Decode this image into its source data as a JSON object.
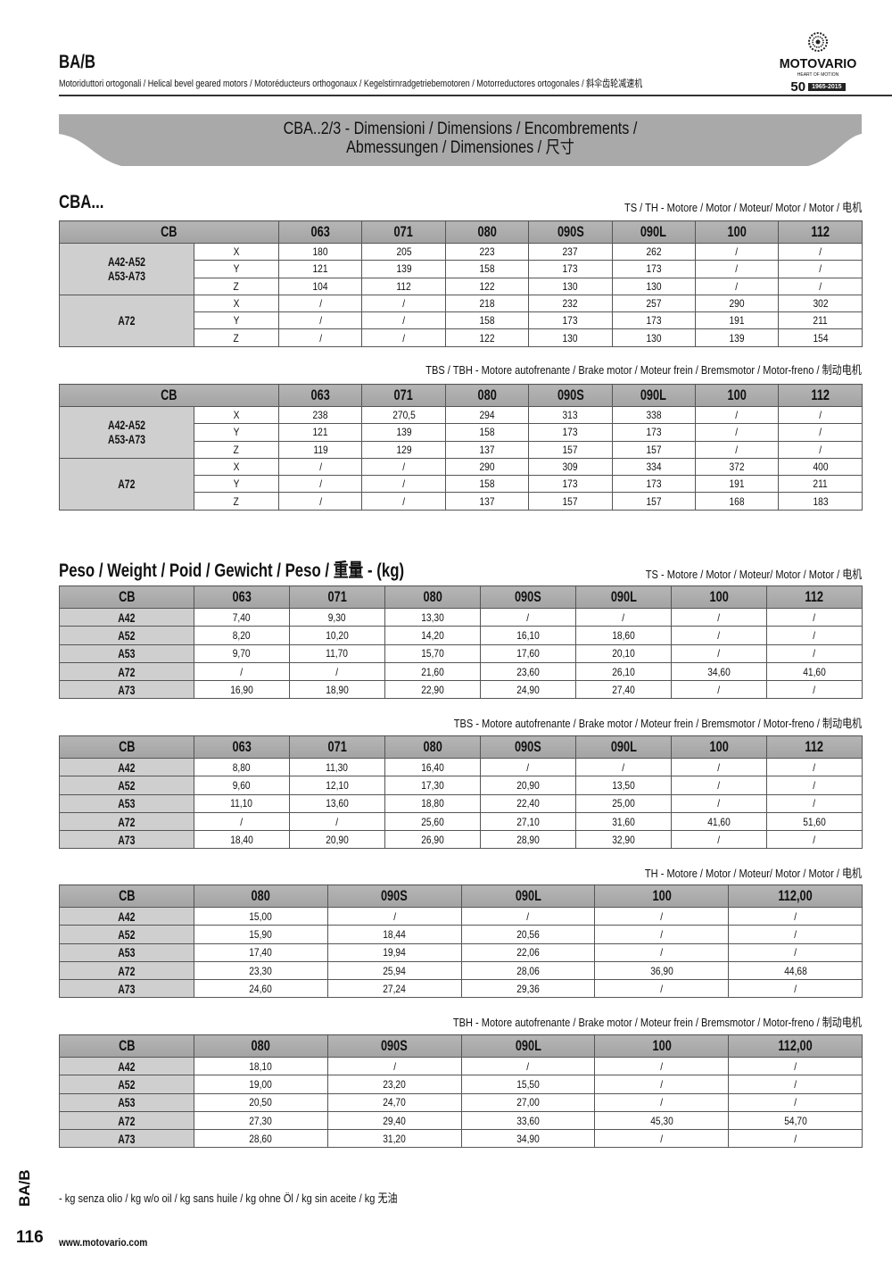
{
  "header": {
    "code": "BA/B",
    "subtitle": "Motoriduttori ortogonali / Helical bevel geared motors / Motoréducteurs orthogonaux / Kegelstirnradgetriebemotoren / Motorreductores ortogonales / 斜伞齿轮减速机",
    "logo": {
      "brand": "MOTOVARIO",
      "tagline": "HEART OF MOTION",
      "anniversary": "50",
      "years": "1965-2015"
    }
  },
  "banner": {
    "line1": "CBA..2/3 - Dimensioni / Dimensions / Encombrements /",
    "line2": "Abmessungen / Dimensiones / 尺寸"
  },
  "dimensions": {
    "title": "CBA...",
    "tables": [
      {
        "motor_label": "TS / TH - Motore / Motor / Moteur/ Motor / Motor / 电机",
        "corner": "CB",
        "columns": [
          "063",
          "071",
          "080",
          "090S",
          "090L",
          "100",
          "112"
        ],
        "groups": [
          {
            "label1": "A42-A52",
            "label2": "A53-A73",
            "rows": [
              {
                "axis": "X",
                "values": [
                  "180",
                  "205",
                  "223",
                  "237",
                  "262",
                  "/",
                  "/"
                ]
              },
              {
                "axis": "Y",
                "values": [
                  "121",
                  "139",
                  "158",
                  "173",
                  "173",
                  "/",
                  "/"
                ]
              },
              {
                "axis": "Z",
                "values": [
                  "104",
                  "112",
                  "122",
                  "130",
                  "130",
                  "/",
                  "/"
                ]
              }
            ]
          },
          {
            "label1": "A72",
            "label2": "",
            "rows": [
              {
                "axis": "X",
                "values": [
                  "/",
                  "/",
                  "218",
                  "232",
                  "257",
                  "290",
                  "302"
                ]
              },
              {
                "axis": "Y",
                "values": [
                  "/",
                  "/",
                  "158",
                  "173",
                  "173",
                  "191",
                  "211"
                ]
              },
              {
                "axis": "Z",
                "values": [
                  "/",
                  "/",
                  "122",
                  "130",
                  "130",
                  "139",
                  "154"
                ]
              }
            ]
          }
        ]
      },
      {
        "motor_label": "TBS / TBH - Motore autofrenante / Brake motor / Moteur frein / Bremsmotor / Motor-freno / 制动电机",
        "corner": "CB",
        "columns": [
          "063",
          "071",
          "080",
          "090S",
          "090L",
          "100",
          "112"
        ],
        "groups": [
          {
            "label1": "A42-A52",
            "label2": "A53-A73",
            "rows": [
              {
                "axis": "X",
                "values": [
                  "238",
                  "270,5",
                  "294",
                  "313",
                  "338",
                  "/",
                  "/"
                ]
              },
              {
                "axis": "Y",
                "values": [
                  "121",
                  "139",
                  "158",
                  "173",
                  "173",
                  "/",
                  "/"
                ]
              },
              {
                "axis": "Z",
                "values": [
                  "119",
                  "129",
                  "137",
                  "157",
                  "157",
                  "/",
                  "/"
                ]
              }
            ]
          },
          {
            "label1": "A72",
            "label2": "",
            "rows": [
              {
                "axis": "X",
                "values": [
                  "/",
                  "/",
                  "290",
                  "309",
                  "334",
                  "372",
                  "400"
                ]
              },
              {
                "axis": "Y",
                "values": [
                  "/",
                  "/",
                  "158",
                  "173",
                  "173",
                  "191",
                  "211"
                ]
              },
              {
                "axis": "Z",
                "values": [
                  "/",
                  "/",
                  "137",
                  "157",
                  "157",
                  "168",
                  "183"
                ]
              }
            ]
          }
        ]
      }
    ]
  },
  "weight": {
    "title": "Peso / Weight / Poid / Gewicht / Peso / 重量 - (kg)",
    "tables": [
      {
        "motor_label": "TS - Motore / Motor / Moteur/ Motor / Motor / 电机",
        "corner": "CB",
        "columns": [
          "063",
          "071",
          "080",
          "090S",
          "090L",
          "100",
          "112"
        ],
        "rows": [
          {
            "label": "A42",
            "values": [
              "7,40",
              "9,30",
              "13,30",
              "/",
              "/",
              "/",
              "/"
            ]
          },
          {
            "label": "A52",
            "values": [
              "8,20",
              "10,20",
              "14,20",
              "16,10",
              "18,60",
              "/",
              "/"
            ]
          },
          {
            "label": "A53",
            "values": [
              "9,70",
              "11,70",
              "15,70",
              "17,60",
              "20,10",
              "/",
              "/"
            ]
          },
          {
            "label": "A72",
            "values": [
              "/",
              "/",
              "21,60",
              "23,60",
              "26,10",
              "34,60",
              "41,60"
            ]
          },
          {
            "label": "A73",
            "values": [
              "16,90",
              "18,90",
              "22,90",
              "24,90",
              "27,40",
              "/",
              "/"
            ]
          }
        ]
      },
      {
        "motor_label": "TBS - Motore autofrenante / Brake motor / Moteur frein / Bremsmotor / Motor-freno / 制动电机",
        "corner": "CB",
        "columns": [
          "063",
          "071",
          "080",
          "090S",
          "090L",
          "100",
          "112"
        ],
        "rows": [
          {
            "label": "A42",
            "values": [
              "8,80",
              "11,30",
              "16,40",
              "/",
              "/",
              "/",
              "/"
            ]
          },
          {
            "label": "A52",
            "values": [
              "9,60",
              "12,10",
              "17,30",
              "20,90",
              "13,50",
              "/",
              "/"
            ]
          },
          {
            "label": "A53",
            "values": [
              "11,10",
              "13,60",
              "18,80",
              "22,40",
              "25,00",
              "/",
              "/"
            ]
          },
          {
            "label": "A72",
            "values": [
              "/",
              "/",
              "25,60",
              "27,10",
              "31,60",
              "41,60",
              "51,60"
            ]
          },
          {
            "label": "A73",
            "values": [
              "18,40",
              "20,90",
              "26,90",
              "28,90",
              "32,90",
              "/",
              "/"
            ]
          }
        ]
      },
      {
        "motor_label": "TH - Motore / Motor / Moteur/ Motor / Motor / 电机",
        "corner": "CB",
        "columns": [
          "080",
          "090S",
          "090L",
          "100",
          "112,00"
        ],
        "rows": [
          {
            "label": "A42",
            "values": [
              "15,00",
              "/",
              "/",
              "/",
              "/"
            ]
          },
          {
            "label": "A52",
            "values": [
              "15,90",
              "18,44",
              "20,56",
              "/",
              "/"
            ]
          },
          {
            "label": "A53",
            "values": [
              "17,40",
              "19,94",
              "22,06",
              "/",
              "/"
            ]
          },
          {
            "label": "A72",
            "values": [
              "23,30",
              "25,94",
              "28,06",
              "36,90",
              "44,68"
            ]
          },
          {
            "label": "A73",
            "values": [
              "24,60",
              "27,24",
              "29,36",
              "/",
              "/"
            ]
          }
        ]
      },
      {
        "motor_label": "TBH - Motore autofrenante / Brake motor / Moteur frein / Bremsmotor / Motor-freno / 制动电机",
        "corner": "CB",
        "columns": [
          "080",
          "090S",
          "090L",
          "100",
          "112,00"
        ],
        "rows": [
          {
            "label": "A42",
            "values": [
              "18,10",
              "/",
              "/",
              "/",
              "/"
            ]
          },
          {
            "label": "A52",
            "values": [
              "19,00",
              "23,20",
              "15,50",
              "/",
              "/"
            ]
          },
          {
            "label": "A53",
            "values": [
              "20,50",
              "24,70",
              "27,00",
              "/",
              "/"
            ]
          },
          {
            "label": "A72",
            "values": [
              "27,30",
              "29,40",
              "33,60",
              "45,30",
              "54,70"
            ]
          },
          {
            "label": "A73",
            "values": [
              "28,60",
              "31,20",
              "34,90",
              "/",
              "/"
            ]
          }
        ]
      }
    ]
  },
  "footer": {
    "note": "-    kg senza olio / kg w/o oil / kg sans huile / kg ohne Öl / kg sin aceite / kg 无油",
    "side_code": "BA/B",
    "page_number": "116",
    "website": "www.motovario.com"
  }
}
